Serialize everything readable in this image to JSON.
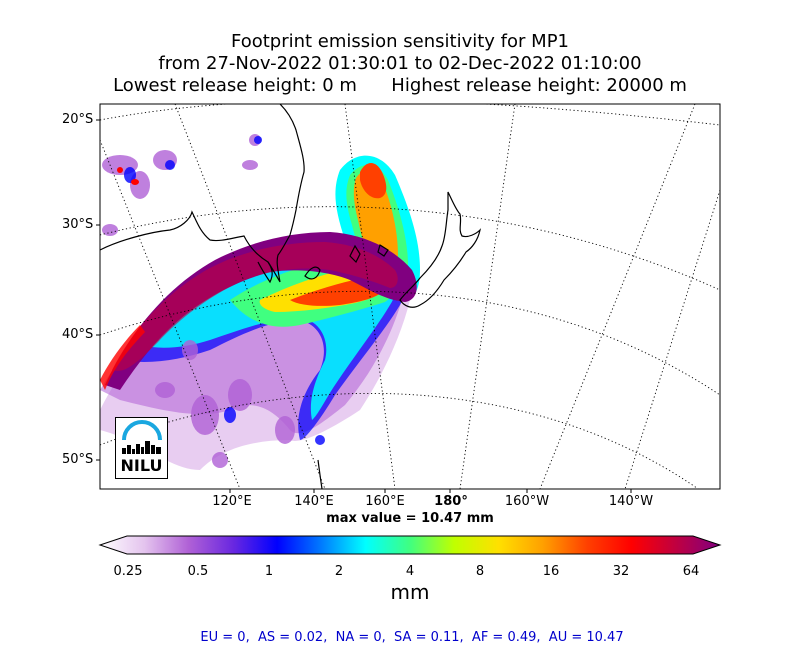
{
  "title": {
    "line1": "Footprint emission sensitivity for MP1",
    "line2": "from 27-Nov-2022 01:30:01 to 02-Dec-2022 01:10:00",
    "line3": "Lowest release height: 0 m      Highest release height: 20000 m"
  },
  "map": {
    "lat_labels": [
      "20°S",
      "30°S",
      "40°S",
      "50°S"
    ],
    "lon_labels": [
      "120°E",
      "140°E",
      "160°E",
      "180°",
      "160°W",
      "140°W"
    ],
    "max_value": "max value = 10.47 mm",
    "grid": "dotted",
    "projection": "polar-stereographic"
  },
  "colorbar": {
    "ticks": [
      "0.25",
      "0.5",
      "1",
      "2",
      "4",
      "8",
      "16",
      "32",
      "64"
    ],
    "unit": "mm",
    "colors": [
      "#ffffff",
      "#e4c4ee",
      "#b061d6",
      "#6a28e0",
      "#0000ff",
      "#007bff",
      "#00ffff",
      "#40ff80",
      "#c0ff00",
      "#ffe000",
      "#ffa000",
      "#ff4000",
      "#ff0000",
      "#c00040",
      "#800080"
    ]
  },
  "regions": "EU = 0,  AS = 0.02,  NA = 0,  SA = 0.11,  AF = 0.49,  AU = 10.47",
  "logo": {
    "text": "NILU"
  }
}
